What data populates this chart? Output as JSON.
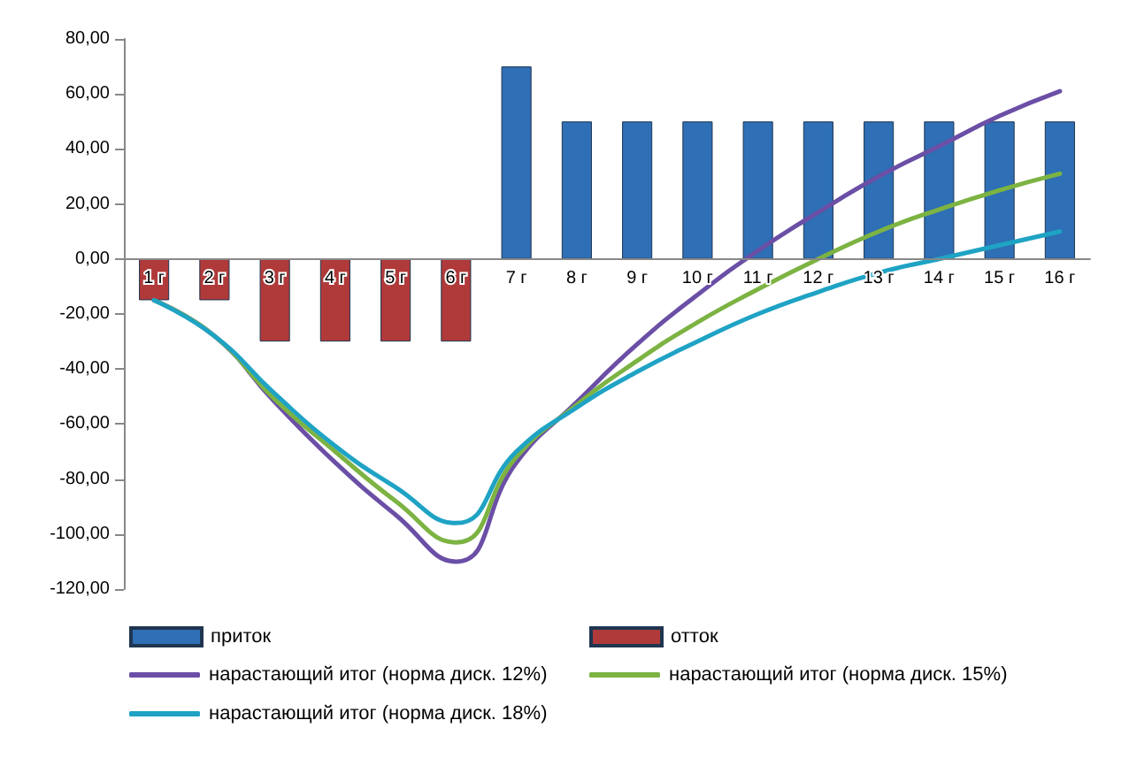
{
  "chart_data": {
    "type": "bar",
    "stacked": true,
    "categories": [
      "1 г",
      "2 г",
      "3 г",
      "4 г",
      "5 г",
      "6 г",
      "7 г",
      "8 г",
      "9 г",
      "10 г",
      "11 г",
      "12 г",
      "13 г",
      "14 г",
      "15 г",
      "16 г"
    ],
    "series": [
      {
        "name": "приток",
        "color": "#2e6fb5",
        "values": [
          null,
          null,
          null,
          null,
          null,
          null,
          70,
          50,
          50,
          50,
          50,
          50,
          50,
          50,
          50,
          50
        ]
      },
      {
        "name": "отток",
        "color": "#b03a3a",
        "values": [
          -15,
          -15,
          -30,
          -30,
          -30,
          -30,
          null,
          null,
          null,
          null,
          null,
          null,
          null,
          null,
          null,
          null
        ]
      },
      {
        "name": "нарастающий итог (норма диск. 12%)",
        "type": "line",
        "color": "#6b4fa6",
        "values": [
          -15,
          -28,
          -52,
          -74,
          -93,
          -110,
          -74,
          -52,
          -31,
          -13,
          3,
          17,
          30,
          41,
          52,
          61
        ]
      },
      {
        "name": "нарастающий итог (норма диск. 15%)",
        "type": "line",
        "color": "#7cb342",
        "values": [
          -15,
          -28,
          -51,
          -70,
          -88,
          -103,
          -72,
          -53,
          -37,
          -23,
          -11,
          0,
          10,
          18,
          25,
          31
        ]
      },
      {
        "name": "нарастающий итог (норма диск. 18%)",
        "type": "line",
        "color": "#1fa3c4",
        "values": [
          -15,
          -28,
          -49,
          -68,
          -83,
          -96,
          -70,
          -54,
          -41,
          -30,
          -20,
          -12,
          -5,
          0,
          5,
          10
        ]
      }
    ],
    "ylim": [
      -120,
      80
    ],
    "yticks": [
      {
        "value": -120,
        "label": "-120,00"
      },
      {
        "value": -100,
        "label": "-100,00"
      },
      {
        "value": -80,
        "label": "-80,00"
      },
      {
        "value": -60,
        "label": "-60,00"
      },
      {
        "value": -40,
        "label": "-40,00"
      },
      {
        "value": -20,
        "label": "-20,00"
      },
      {
        "value": 0,
        "label": "0,00"
      },
      {
        "value": 20,
        "label": "20,00"
      },
      {
        "value": 40,
        "label": "40,00"
      },
      {
        "value": 60,
        "label": "60,00"
      },
      {
        "value": 80,
        "label": "80,00"
      }
    ],
    "grid": false,
    "legend": "bottom",
    "marker": "none",
    "line_style": "solid"
  }
}
